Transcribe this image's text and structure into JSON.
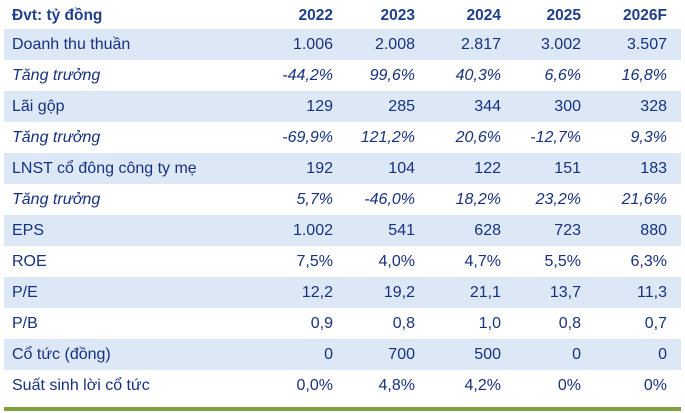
{
  "header": {
    "unit_label": "Đvt: tỷ đồng",
    "years": [
      "2022",
      "2023",
      "2024",
      "2025",
      "2026F"
    ]
  },
  "rows": [
    {
      "label": "Doanh thu thuần",
      "values": [
        "1.006",
        "2.008",
        "2.817",
        "3.002",
        "3.507"
      ]
    },
    {
      "label": "Tăng trưởng",
      "values": [
        "-44,2%",
        "99,6%",
        "40,3%",
        "6,6%",
        "16,8%"
      ]
    },
    {
      "label": "Lãi gộp",
      "values": [
        "129",
        "285",
        "344",
        "300",
        "328"
      ]
    },
    {
      "label": "Tăng trưởng",
      "values": [
        "-69,9%",
        "121,2%",
        "20,6%",
        "-12,7%",
        "9,3%"
      ]
    },
    {
      "label": "LNST cổ đông công ty mẹ",
      "values": [
        "192",
        "104",
        "122",
        "151",
        "183"
      ]
    },
    {
      "label": "Tăng trưởng",
      "values": [
        "5,7%",
        "-46,0%",
        "18,2%",
        "23,2%",
        "21,6%"
      ]
    },
    {
      "label": "EPS",
      "values": [
        "1.002",
        "541",
        "628",
        "723",
        "880"
      ]
    },
    {
      "label": "ROE",
      "values": [
        "7,5%",
        "4,0%",
        "4,7%",
        "5,5%",
        "6,3%"
      ]
    },
    {
      "label": "P/E",
      "values": [
        "12,2",
        "19,2",
        "21,1",
        "13,7",
        "11,3"
      ]
    },
    {
      "label": "P/B",
      "values": [
        "0,9",
        "0,8",
        "1,0",
        "0,8",
        "0,7"
      ]
    },
    {
      "label": "Cổ tức (đồng)",
      "values": [
        "0",
        "700",
        "500",
        "0",
        "0"
      ]
    },
    {
      "label": "Suất sinh lời cổ tức",
      "values": [
        "0,0%",
        "4,8%",
        "4,2%",
        "0%",
        "0%"
      ]
    }
  ],
  "colors": {
    "text": "#17317f",
    "stripe": "#dde8f7",
    "rule": "#7ea33d"
  }
}
